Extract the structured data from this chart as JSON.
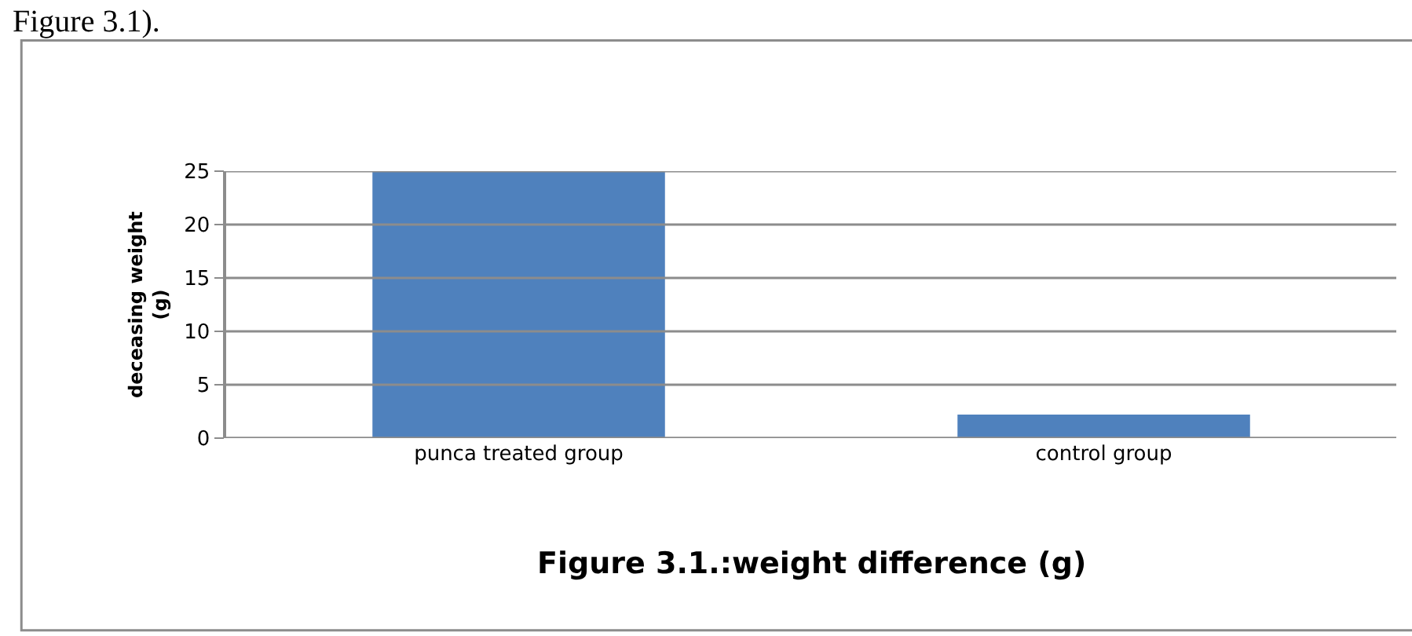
{
  "chart_data": {
    "type": "bar",
    "title": "Figure 3.1.:weight difference (g)",
    "ylabel": "deceasing weight\n(g)",
    "categories": [
      "punca treated group",
      "control group"
    ],
    "values": [
      25,
      2.2
    ],
    "color": "#4f81bd",
    "ylim": [
      0,
      25
    ],
    "yticks": [
      0,
      5,
      10,
      15,
      20,
      25
    ],
    "grid": "y",
    "annotations": [
      "Figure 3.1)."
    ]
  }
}
